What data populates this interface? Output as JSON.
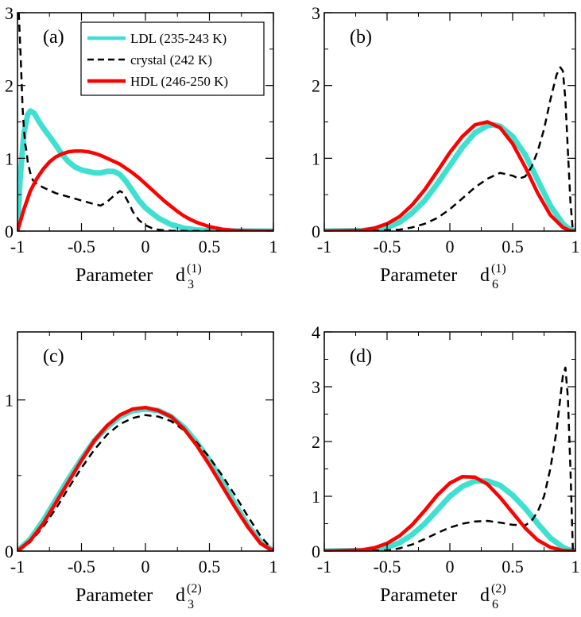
{
  "chart_data": [
    {
      "type": "line",
      "panel_label": "(a)",
      "xlabel_main": "Parameter",
      "xlabel_sym": "d",
      "xlabel_sub": "3",
      "xlabel_sup": "(1)",
      "xlim": [
        -1,
        1
      ],
      "ylim": [
        0,
        3
      ],
      "xticks": [
        -1,
        -0.5,
        0,
        0.5,
        1
      ],
      "xtick_labels": [
        "-1",
        "-0.5",
        "0",
        "0.5",
        "1"
      ],
      "yticks": [
        0,
        1,
        2,
        3
      ],
      "ytick_labels": [
        "0",
        "1",
        "2",
        "3"
      ],
      "legend": {
        "position": "top-center",
        "entries": [
          {
            "label": "LDL (235-243 K)",
            "series": "LDL"
          },
          {
            "label": "crystal (242 K)",
            "series": "crystal"
          },
          {
            "label": "HDL (246-250 K)",
            "series": "HDL"
          }
        ]
      },
      "series": [
        {
          "name": "LDL",
          "x": [
            -1,
            -0.98,
            -0.95,
            -0.92,
            -0.9,
            -0.87,
            -0.83,
            -0.8,
            -0.75,
            -0.7,
            -0.65,
            -0.6,
            -0.55,
            -0.5,
            -0.45,
            -0.4,
            -0.35,
            -0.3,
            -0.25,
            -0.2,
            -0.15,
            -0.1,
            -0.05,
            0,
            0.1,
            0.2,
            0.3,
            0.4,
            0.5,
            0.6,
            0.7,
            0.8,
            0.9,
            1
          ],
          "y": [
            0,
            0.7,
            1.35,
            1.6,
            1.65,
            1.62,
            1.5,
            1.42,
            1.3,
            1.18,
            1.05,
            0.95,
            0.88,
            0.84,
            0.82,
            0.8,
            0.8,
            0.82,
            0.82,
            0.78,
            0.68,
            0.55,
            0.42,
            0.32,
            0.18,
            0.09,
            0.04,
            0.015,
            0.005,
            0.002,
            0.001,
            0,
            0,
            0
          ]
        },
        {
          "name": "crystal",
          "x": [
            -0.99,
            -0.975,
            -0.96,
            -0.95,
            -0.94,
            -0.93,
            -0.92,
            -0.9,
            -0.88,
            -0.85,
            -0.8,
            -0.75,
            -0.7,
            -0.6,
            -0.5,
            -0.4,
            -0.35,
            -0.3,
            -0.25,
            -0.2,
            -0.17,
            -0.15,
            -0.12,
            -0.1,
            -0.05,
            0,
            0.05,
            0.1,
            0.15,
            0.2,
            0.3,
            0.4,
            0.5,
            0.6,
            1
          ],
          "y": [
            3.0,
            2.4,
            1.7,
            1.4,
            1.2,
            1.1,
            0.95,
            0.8,
            0.7,
            0.65,
            0.6,
            0.56,
            0.52,
            0.47,
            0.42,
            0.37,
            0.35,
            0.4,
            0.48,
            0.55,
            0.52,
            0.45,
            0.35,
            0.27,
            0.15,
            0.08,
            0.04,
            0.02,
            0.01,
            0.005,
            0.002,
            0.001,
            0,
            0,
            0
          ]
        },
        {
          "name": "HDL",
          "x": [
            -1,
            -0.95,
            -0.9,
            -0.85,
            -0.8,
            -0.75,
            -0.7,
            -0.65,
            -0.6,
            -0.55,
            -0.5,
            -0.45,
            -0.4,
            -0.35,
            -0.3,
            -0.25,
            -0.2,
            -0.15,
            -0.1,
            -0.05,
            0,
            0.05,
            0.1,
            0.15,
            0.2,
            0.25,
            0.3,
            0.35,
            0.4,
            0.5,
            0.6,
            0.7,
            0.8,
            0.9,
            1
          ],
          "y": [
            0,
            0.3,
            0.55,
            0.72,
            0.85,
            0.95,
            1.02,
            1.06,
            1.09,
            1.1,
            1.1,
            1.09,
            1.07,
            1.04,
            1.0,
            0.96,
            0.92,
            0.86,
            0.8,
            0.73,
            0.65,
            0.57,
            0.49,
            0.41,
            0.34,
            0.27,
            0.21,
            0.16,
            0.12,
            0.06,
            0.025,
            0.008,
            0.002,
            0,
            0
          ]
        }
      ]
    },
    {
      "type": "line",
      "panel_label": "(b)",
      "xlabel_main": "Parameter",
      "xlabel_sym": "d",
      "xlabel_sub": "6",
      "xlabel_sup": "(1)",
      "xlim": [
        -1,
        1
      ],
      "ylim": [
        0,
        3
      ],
      "xticks": [
        -1,
        -0.5,
        0,
        0.5,
        1
      ],
      "xtick_labels": [
        "-1",
        "-0.5",
        "0",
        "0.5",
        "1"
      ],
      "yticks": [
        0,
        1,
        2,
        3
      ],
      "ytick_labels": [
        "0",
        "1",
        "2",
        "3"
      ],
      "series": [
        {
          "name": "LDL",
          "x": [
            -1,
            -0.7,
            -0.5,
            -0.4,
            -0.3,
            -0.2,
            -0.1,
            0,
            0.1,
            0.2,
            0.3,
            0.35,
            0.4,
            0.5,
            0.6,
            0.7,
            0.8,
            0.9,
            0.95,
            1
          ],
          "y": [
            0,
            0.005,
            0.05,
            0.12,
            0.25,
            0.42,
            0.65,
            0.9,
            1.15,
            1.35,
            1.45,
            1.46,
            1.44,
            1.3,
            1.05,
            0.7,
            0.35,
            0.1,
            0.03,
            0
          ]
        },
        {
          "name": "crystal",
          "x": [
            -1,
            -0.6,
            -0.4,
            -0.3,
            -0.2,
            -0.1,
            0,
            0.1,
            0.2,
            0.3,
            0.4,
            0.5,
            0.55,
            0.6,
            0.65,
            0.7,
            0.75,
            0.8,
            0.85,
            0.88,
            0.9,
            0.92,
            0.94,
            0.96,
            0.98
          ],
          "y": [
            0,
            0.003,
            0.02,
            0.05,
            0.1,
            0.18,
            0.3,
            0.45,
            0.6,
            0.72,
            0.8,
            0.76,
            0.72,
            0.75,
            0.88,
            1.1,
            1.4,
            1.8,
            2.15,
            2.25,
            2.2,
            1.8,
            1.1,
            0.4,
            0
          ]
        },
        {
          "name": "HDL",
          "x": [
            -1,
            -0.7,
            -0.6,
            -0.5,
            -0.4,
            -0.3,
            -0.2,
            -0.1,
            0,
            0.1,
            0.2,
            0.3,
            0.4,
            0.5,
            0.6,
            0.7,
            0.8,
            0.9,
            0.95,
            1
          ],
          "y": [
            0,
            0.01,
            0.04,
            0.1,
            0.2,
            0.36,
            0.57,
            0.82,
            1.08,
            1.3,
            1.46,
            1.5,
            1.42,
            1.2,
            0.88,
            0.52,
            0.22,
            0.05,
            0.01,
            0
          ]
        }
      ]
    },
    {
      "type": "line",
      "panel_label": "(c)",
      "xlabel_main": "Parameter",
      "xlabel_sym": "d",
      "xlabel_sub": "3",
      "xlabel_sup": "(2)",
      "xlim": [
        -1,
        1
      ],
      "ylim": [
        0,
        1.45
      ],
      "xticks": [
        -1,
        -0.5,
        0,
        0.5,
        1
      ],
      "xtick_labels": [
        "-1",
        "-0.5",
        "0",
        "0.5",
        "1"
      ],
      "yticks": [
        0,
        1
      ],
      "ytick_labels": [
        "0",
        "1"
      ],
      "series": [
        {
          "name": "LDL",
          "x": [
            -1,
            -0.9,
            -0.8,
            -0.7,
            -0.6,
            -0.5,
            -0.4,
            -0.3,
            -0.2,
            -0.1,
            0,
            0.1,
            0.2,
            0.3,
            0.4,
            0.5,
            0.6,
            0.7,
            0.8,
            0.9,
            1
          ],
          "y": [
            0,
            0.08,
            0.2,
            0.34,
            0.48,
            0.61,
            0.73,
            0.82,
            0.89,
            0.93,
            0.94,
            0.93,
            0.89,
            0.82,
            0.72,
            0.6,
            0.46,
            0.31,
            0.17,
            0.06,
            0
          ]
        },
        {
          "name": "crystal",
          "x": [
            -1,
            -0.9,
            -0.8,
            -0.7,
            -0.6,
            -0.5,
            -0.4,
            -0.3,
            -0.2,
            -0.1,
            0,
            0.1,
            0.2,
            0.3,
            0.4,
            0.5,
            0.6,
            0.7,
            0.8,
            0.9,
            1
          ],
          "y": [
            0,
            0.06,
            0.16,
            0.28,
            0.42,
            0.55,
            0.67,
            0.77,
            0.84,
            0.88,
            0.9,
            0.89,
            0.86,
            0.8,
            0.72,
            0.62,
            0.5,
            0.37,
            0.23,
            0.1,
            0
          ]
        },
        {
          "name": "HDL",
          "x": [
            -1,
            -0.9,
            -0.8,
            -0.7,
            -0.6,
            -0.5,
            -0.4,
            -0.3,
            -0.2,
            -0.1,
            0,
            0.1,
            0.2,
            0.3,
            0.4,
            0.5,
            0.6,
            0.7,
            0.8,
            0.9,
            1
          ],
          "y": [
            0,
            0.07,
            0.18,
            0.32,
            0.46,
            0.6,
            0.73,
            0.83,
            0.9,
            0.94,
            0.95,
            0.93,
            0.89,
            0.81,
            0.7,
            0.57,
            0.43,
            0.29,
            0.16,
            0.05,
            0
          ]
        }
      ]
    },
    {
      "type": "line",
      "panel_label": "(d)",
      "xlabel_main": "Parameter",
      "xlabel_sym": "d",
      "xlabel_sub": "6",
      "xlabel_sup": "(2)",
      "xlim": [
        -1,
        1
      ],
      "ylim": [
        0,
        4
      ],
      "xticks": [
        -1,
        -0.5,
        0,
        0.5,
        1
      ],
      "xtick_labels": [
        "-1",
        "-0.5",
        "0",
        "0.5",
        "1"
      ],
      "yticks": [
        0,
        1,
        2,
        3,
        4
      ],
      "ytick_labels": [
        "0",
        "1",
        "2",
        "3",
        "4"
      ],
      "series": [
        {
          "name": "LDL",
          "x": [
            -1,
            -0.7,
            -0.6,
            -0.5,
            -0.4,
            -0.3,
            -0.2,
            -0.1,
            0,
            0.1,
            0.2,
            0.3,
            0.4,
            0.5,
            0.6,
            0.7,
            0.8,
            0.9,
            0.95,
            1
          ],
          "y": [
            0,
            0.01,
            0.03,
            0.07,
            0.15,
            0.3,
            0.5,
            0.75,
            1.0,
            1.18,
            1.28,
            1.28,
            1.2,
            1.02,
            0.78,
            0.5,
            0.24,
            0.07,
            0.02,
            0
          ]
        },
        {
          "name": "crystal",
          "x": [
            -1,
            -0.5,
            -0.4,
            -0.3,
            -0.2,
            -0.1,
            0,
            0.1,
            0.2,
            0.3,
            0.4,
            0.5,
            0.6,
            0.65,
            0.7,
            0.75,
            0.8,
            0.85,
            0.88,
            0.9,
            0.92,
            0.94,
            0.96,
            0.98
          ],
          "y": [
            0,
            0.01,
            0.05,
            0.12,
            0.22,
            0.33,
            0.43,
            0.5,
            0.54,
            0.55,
            0.52,
            0.48,
            0.47,
            0.55,
            0.72,
            1.0,
            1.5,
            2.2,
            2.8,
            3.2,
            3.35,
            2.8,
            1.5,
            0
          ]
        },
        {
          "name": "HDL",
          "x": [
            -1,
            -0.7,
            -0.6,
            -0.5,
            -0.4,
            -0.3,
            -0.2,
            -0.1,
            0,
            0.1,
            0.2,
            0.3,
            0.4,
            0.5,
            0.6,
            0.7,
            0.8,
            0.9,
            1
          ],
          "y": [
            0,
            0.02,
            0.06,
            0.14,
            0.28,
            0.48,
            0.74,
            1.02,
            1.24,
            1.36,
            1.35,
            1.22,
            0.98,
            0.7,
            0.42,
            0.2,
            0.07,
            0.01,
            0
          ]
        }
      ]
    }
  ],
  "colors": {
    "LDL": "#40e0d0",
    "crystal": "#000000",
    "HDL": "#ff0000",
    "axes": "#000000",
    "background": "#ffffff"
  }
}
